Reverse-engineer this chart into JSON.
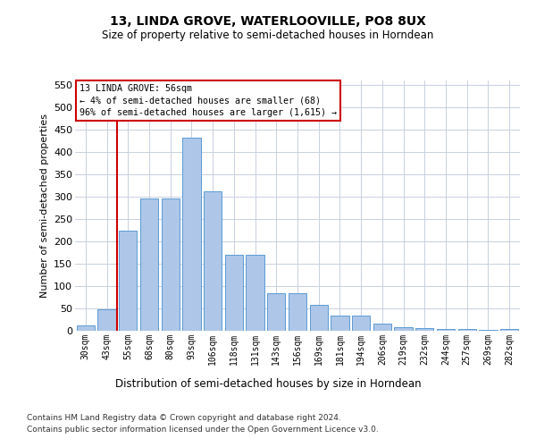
{
  "title": "13, LINDA GROVE, WATERLOOVILLE, PO8 8UX",
  "subtitle": "Size of property relative to semi-detached houses in Horndean",
  "xlabel": "Distribution of semi-detached houses by size in Horndean",
  "ylabel": "Number of semi-detached properties",
  "footer1": "Contains HM Land Registry data © Crown copyright and database right 2024.",
  "footer2": "Contains public sector information licensed under the Open Government Licence v3.0.",
  "annotation_title": "13 LINDA GROVE: 56sqm",
  "annotation_line1": "← 4% of semi-detached houses are smaller (68)",
  "annotation_line2": "96% of semi-detached houses are larger (1,615) →",
  "property_size": 56,
  "categories": [
    "30sqm",
    "43sqm",
    "55sqm",
    "68sqm",
    "80sqm",
    "93sqm",
    "106sqm",
    "118sqm",
    "131sqm",
    "143sqm",
    "156sqm",
    "169sqm",
    "181sqm",
    "194sqm",
    "206sqm",
    "219sqm",
    "232sqm",
    "244sqm",
    "257sqm",
    "269sqm",
    "282sqm"
  ],
  "values": [
    12,
    48,
    225,
    295,
    295,
    432,
    312,
    170,
    170,
    85,
    85,
    58,
    35,
    35,
    17,
    8,
    6,
    4,
    5,
    3,
    5
  ],
  "bar_color": "#aec6e8",
  "bar_edge_color": "#5b9bd5",
  "line_color": "#cc0000",
  "annotation_box_color": "#cc0000",
  "grid_color": "#c8d0e0",
  "ylim": [
    0,
    560
  ],
  "yticks": [
    0,
    50,
    100,
    150,
    200,
    250,
    300,
    350,
    400,
    450,
    500,
    550
  ]
}
